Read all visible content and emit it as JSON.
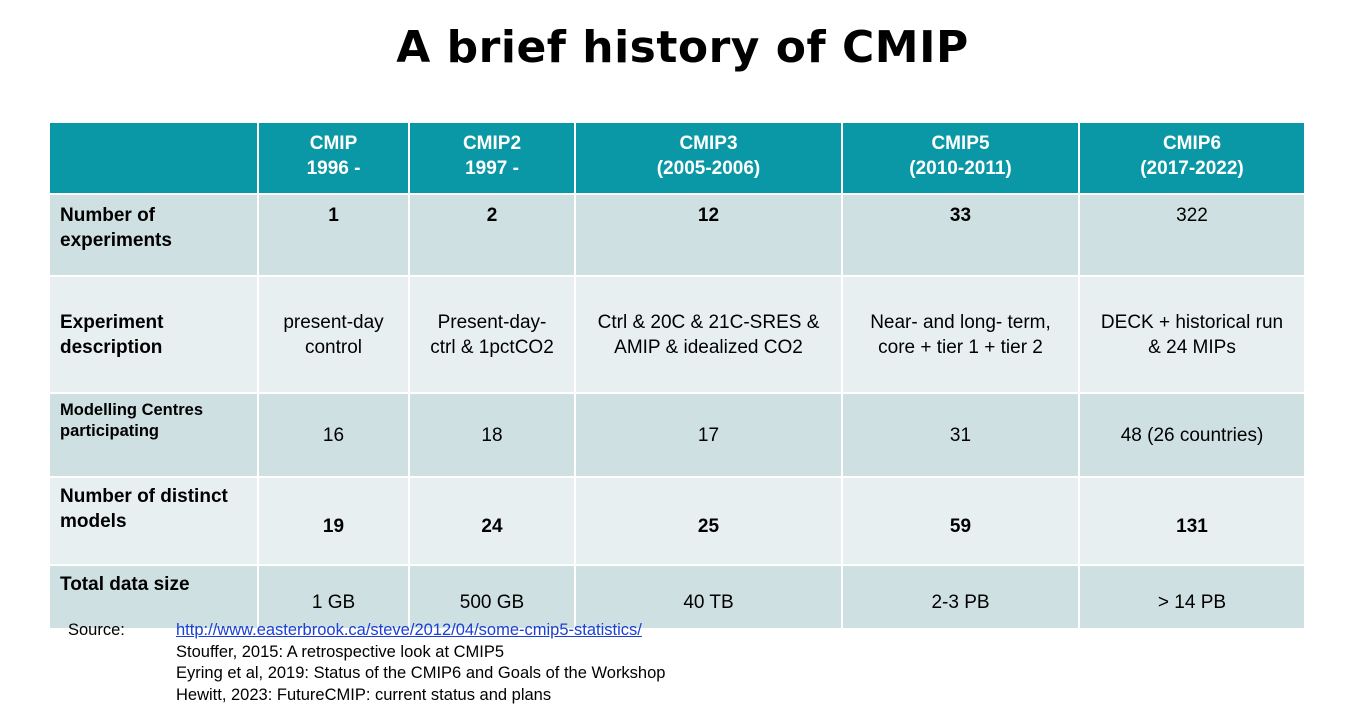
{
  "title": "A brief history of CMIP",
  "table": {
    "headers": [
      {
        "line1": "CMIP",
        "line2": "1996 -"
      },
      {
        "line1": "CMIP2",
        "line2": "1997 -"
      },
      {
        "line1": "CMIP3",
        "line2": "(2005-2006)"
      },
      {
        "line1": "CMIP5",
        "line2": "(2010-2011)"
      },
      {
        "line1": "CMIP6",
        "line2": "(2017-2022)"
      }
    ],
    "rows": {
      "experiments": {
        "label_line1": "Number of",
        "label_line2": "experiments",
        "values": [
          "1",
          "2",
          "12",
          "33",
          "322"
        ]
      },
      "description": {
        "label_line1": "Experiment",
        "label_line2": "description",
        "values": [
          {
            "line1": "present-day",
            "line2": "control"
          },
          {
            "line1": "Present-day-",
            "line2": "ctrl & 1pctCO2"
          },
          {
            "line1": "Ctrl & 20C & 21C-SRES &",
            "line2": "AMIP & idealized CO2"
          },
          {
            "line1": "Near- and long- term,",
            "line2": "core + tier 1 + tier 2"
          },
          {
            "line1": "DECK + historical run",
            "line2": "& 24 MIPs"
          }
        ]
      },
      "centres": {
        "label_line1": "Modelling Centres",
        "label_line2": "participating",
        "values": [
          "16",
          "18",
          "17",
          "31",
          "48 (26 countries)"
        ]
      },
      "models": {
        "label_line1": "Number of distinct",
        "label_line2": "models",
        "values": [
          "19",
          "24",
          "25",
          "59",
          "131"
        ]
      },
      "datasize": {
        "label": "Total data size",
        "values": [
          "1 GB",
          "500 GB",
          "40 TB",
          "2-3 PB",
          "> 14 PB"
        ]
      }
    }
  },
  "source": {
    "label": "Source:",
    "link": "http://www.easterbrook.ca/steve/2012/04/some-cmip5-statistics/",
    "refs": [
      "Stouffer, 2015: A retrospective look at CMIP5",
      "Eyring et al, 2019: Status of the CMIP6 and Goals of the Workshop",
      "Hewitt, 2023: FutureCMIP: current status and plans"
    ]
  },
  "colors": {
    "header_bg": "#0b98a6",
    "row_dark": "#cfe0e3",
    "row_light": "#e7eff1",
    "link": "#1a3fd6"
  }
}
